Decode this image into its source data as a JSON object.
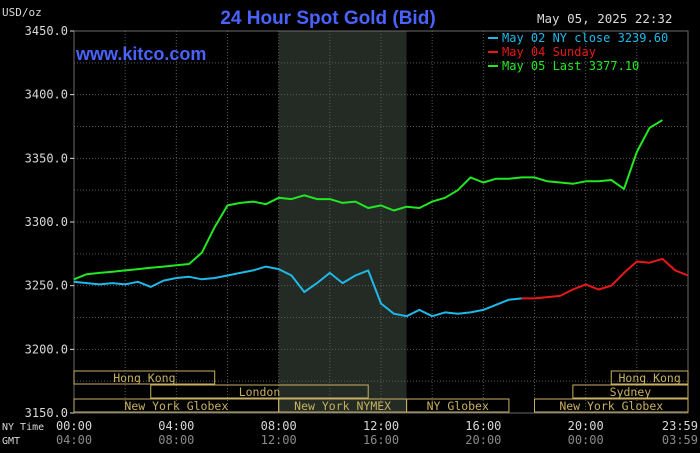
{
  "title": "24 Hour Spot Gold (Bid)",
  "date_label": "May 05, 2025 22:32",
  "brand": "www.kitco.com",
  "y_unit": "USD/oz",
  "colors": {
    "title": "#4a63ff",
    "brand": "#4a63ff",
    "grid": "#5a5a5a",
    "axis_text": "#d8d8d8",
    "session_band": "#c8b060",
    "shade": "#242b24",
    "series_may02": "#1fb8e8",
    "series_may04": "#e81818",
    "series_may05": "#22e822"
  },
  "legend": [
    {
      "label": "May 02 NY close 3239.60",
      "color": "#1fb8e8"
    },
    {
      "label": "May 04 Sunday",
      "color": "#e81818"
    },
    {
      "label": "May 05 Last 3377.10",
      "color": "#22e822"
    }
  ],
  "sessions": {
    "row1": [
      {
        "label": "Hong Kong",
        "start": 0.0,
        "end": 5.5
      },
      {
        "label": "Hong Kong",
        "start": 21.0,
        "end": 24.0
      }
    ],
    "row2": [
      {
        "label": "London",
        "start": 3.0,
        "end": 11.5
      },
      {
        "label": "Sydney",
        "start": 19.5,
        "end": 24.0
      }
    ],
    "row3": [
      {
        "label": "New York Globex",
        "start": 0.0,
        "end": 8.0
      },
      {
        "label": "New York NYMEX",
        "start": 8.0,
        "end": 13.0
      },
      {
        "label": "NY Globex",
        "start": 13.0,
        "end": 17.0
      },
      {
        "label": "New York Globex",
        "start": 18.0,
        "end": 24.0
      }
    ]
  },
  "time_rows": [
    {
      "name": "NY Time",
      "ticks": [
        "00:00",
        "04:00",
        "08:00",
        "12:00",
        "16:00",
        "20:00",
        "23:59"
      ]
    },
    {
      "name": "GMT",
      "ticks": [
        "04:00",
        "08:00",
        "12:00",
        "16:00",
        "20:00",
        "00:00",
        "03:59"
      ]
    }
  ],
  "chart_data": {
    "type": "line",
    "title": "24 Hour Spot Gold (Bid)",
    "ylabel": "USD/oz",
    "x_unit": "hours (NY time)",
    "xlim": [
      0,
      24
    ],
    "ylim": [
      3150,
      3450
    ],
    "yticks": [
      "3150.0",
      "3200.0",
      "3250.0",
      "3300.0",
      "3350.0",
      "3400.0",
      "3450.0"
    ],
    "shaded_ny_session": [
      8.0,
      13.0
    ],
    "grid": true,
    "legend_position": "top-right",
    "series": [
      {
        "name": "May 02 NY close 3239.60",
        "x": [
          0,
          0.5,
          1,
          1.5,
          2,
          2.5,
          3,
          3.5,
          4,
          4.5,
          5,
          5.5,
          6,
          6.5,
          7,
          7.5,
          8,
          8.5,
          9,
          9.5,
          10,
          10.5,
          11,
          11.5,
          12,
          12.5,
          13,
          13.5,
          14,
          14.5,
          15,
          15.5,
          16,
          16.5,
          17,
          17.5
        ],
        "y": [
          3253,
          3252,
          3251,
          3252,
          3251,
          3253,
          3249,
          3254,
          3256,
          3257,
          3255,
          3256,
          3258,
          3260,
          3262,
          3265,
          3263,
          3258,
          3245,
          3252,
          3260,
          3252,
          3258,
          3262,
          3236,
          3228,
          3226,
          3231,
          3226,
          3229,
          3228,
          3229,
          3231,
          3235,
          3239,
          3240
        ]
      },
      {
        "name": "May 04 Sunday",
        "x": [
          17.5,
          18,
          18.5,
          19,
          19.5,
          20,
          20.5,
          21,
          21.5,
          22,
          22.5,
          23,
          23.5,
          24
        ],
        "y": [
          3240,
          3240,
          3241,
          3242,
          3247,
          3251,
          3247,
          3250,
          3260,
          3269,
          3268,
          3271,
          3262,
          3258
        ]
      },
      {
        "name": "May 05 Last 3377.10",
        "x": [
          0,
          0.5,
          1,
          1.5,
          2,
          2.5,
          3,
          3.5,
          4,
          4.5,
          5,
          5.5,
          6,
          6.5,
          7,
          7.5,
          8,
          8.5,
          9,
          9.5,
          10,
          10.5,
          11,
          11.5,
          12,
          12.5,
          13,
          13.5,
          14,
          14.5,
          15,
          15.5,
          16,
          16.5,
          17,
          17.5,
          18,
          18.5,
          19,
          19.5,
          20,
          20.5,
          21,
          21.5,
          22,
          22.5,
          23
        ],
        "y": [
          3255,
          3259,
          3260,
          3261,
          3262,
          3263,
          3264,
          3265,
          3266,
          3267,
          3276,
          3296,
          3313,
          3315,
          3316,
          3314,
          3319,
          3318,
          3321,
          3318,
          3318,
          3315,
          3316,
          3311,
          3313,
          3309,
          3312,
          3311,
          3316,
          3319,
          3325,
          3335,
          3331,
          3334,
          3334,
          3335,
          3335,
          3332,
          3331,
          3330,
          3332,
          3332,
          3333,
          3326,
          3355,
          3374,
          3380
        ]
      }
    ]
  }
}
